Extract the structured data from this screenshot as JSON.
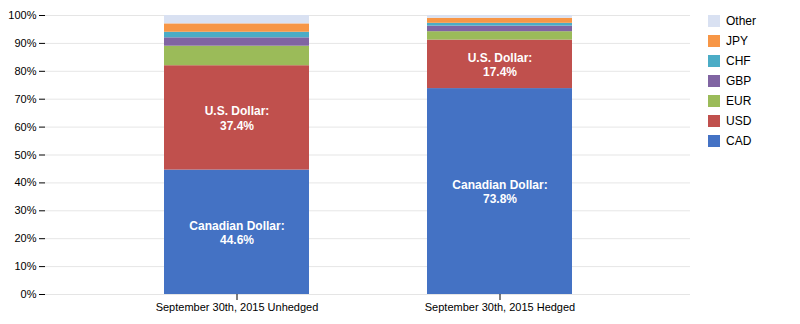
{
  "chart_data": {
    "type": "bar",
    "stacked": true,
    "categories": [
      "September 30th, 2015 Unhedged",
      "September 30th, 2015 Hedged"
    ],
    "series": [
      {
        "name": "CAD",
        "color": "#4472C4",
        "values": [
          44.6,
          73.8
        ]
      },
      {
        "name": "USD",
        "color": "#C0504D",
        "values": [
          37.4,
          17.4
        ]
      },
      {
        "name": "EUR",
        "color": "#9BBB59",
        "values": [
          7.0,
          3.0
        ]
      },
      {
        "name": "GBP",
        "color": "#8064A2",
        "values": [
          3.0,
          2.0
        ]
      },
      {
        "name": "CHF",
        "color": "#4BACC6",
        "values": [
          2.0,
          1.0
        ]
      },
      {
        "name": "JPY",
        "color": "#F79646",
        "values": [
          3.0,
          1.8
        ]
      },
      {
        "name": "Other",
        "color": "#D9E1F2",
        "values": [
          3.0,
          1.0
        ]
      }
    ],
    "annotations": [
      {
        "category": "September 30th, 2015 Unhedged",
        "series": "CAD",
        "text": "Canadian Dollar:\n44.6%",
        "color": "white"
      },
      {
        "category": "September 30th, 2015 Unhedged",
        "series": "USD",
        "text": "U.S. Dollar:\n37.4%",
        "color": "white"
      },
      {
        "category": "September 30th, 2015 Hedged",
        "series": "CAD",
        "text": "Canadian Dollar:\n73.8%",
        "color": "white"
      },
      {
        "category": "September 30th, 2015 Hedged",
        "series": "USD",
        "text": "U.S. Dollar:\n17.4%",
        "color": "white"
      }
    ],
    "ylim": [
      0,
      100
    ],
    "yticks": [
      {
        "value": 0,
        "label": "0%"
      },
      {
        "value": 10,
        "label": "10%"
      },
      {
        "value": 20,
        "label": "20%"
      },
      {
        "value": 30,
        "label": "30%"
      },
      {
        "value": 40,
        "label": "40%"
      },
      {
        "value": 50,
        "label": "50%"
      },
      {
        "value": 60,
        "label": "60%"
      },
      {
        "value": 70,
        "label": "70%"
      },
      {
        "value": 80,
        "label": "80%"
      },
      {
        "value": 90,
        "label": "90%"
      },
      {
        "value": 100,
        "label": "100%"
      }
    ],
    "grid": true,
    "legend": "right"
  }
}
